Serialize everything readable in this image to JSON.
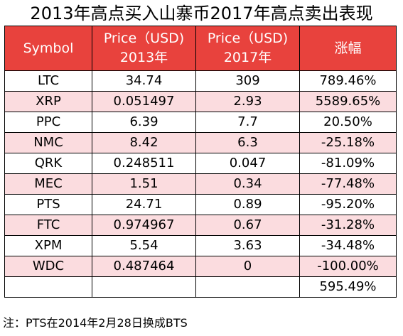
{
  "title": "2013年高点买入山寨币2017年高点卖出表现",
  "colors": {
    "header_bg": "#e8423d",
    "header_text": "#ffffff",
    "alt_row_bg": "#fbdcdf",
    "plain_row_bg": "#ffffff",
    "border": "#000000"
  },
  "table": {
    "headers": [
      {
        "line1": "Symbol",
        "line2": ""
      },
      {
        "line1": "Price（USD)",
        "line2": "2013年"
      },
      {
        "line1": "Price（USD)",
        "line2": "2017年"
      },
      {
        "line1": "涨幅",
        "line2": ""
      }
    ],
    "rows": [
      {
        "symbol": "LTC",
        "price_2013": "34.74",
        "price_2017": "309",
        "change": "789.46%"
      },
      {
        "symbol": "XRP",
        "price_2013": "0.051497",
        "price_2017": "2.93",
        "change": "5589.65%"
      },
      {
        "symbol": "PPC",
        "price_2013": "6.39",
        "price_2017": "7.7",
        "change": "20.50%"
      },
      {
        "symbol": "NMC",
        "price_2013": "8.42",
        "price_2017": "6.3",
        "change": "-25.18%"
      },
      {
        "symbol": "QRK",
        "price_2013": "0.248511",
        "price_2017": "0.047",
        "change": "-81.09%"
      },
      {
        "symbol": "MEC",
        "price_2013": "1.51",
        "price_2017": "0.34",
        "change": "-77.48%"
      },
      {
        "symbol": "PTS",
        "price_2013": "24.71",
        "price_2017": "0.89",
        "change": "-95.20%"
      },
      {
        "symbol": "FTC",
        "price_2013": "0.974967",
        "price_2017": "0.67",
        "change": "-31.28%"
      },
      {
        "symbol": "XPM",
        "price_2013": "5.54",
        "price_2017": "3.63",
        "change": "-34.48%"
      },
      {
        "symbol": "WDC",
        "price_2013": "0.487464",
        "price_2017": "0",
        "change": "-100.00%"
      }
    ],
    "total": {
      "symbol": "",
      "price_2013": "",
      "price_2017": "",
      "change": "595.49%"
    }
  },
  "note": "注：PTS在2014年2月28日换成BTS"
}
